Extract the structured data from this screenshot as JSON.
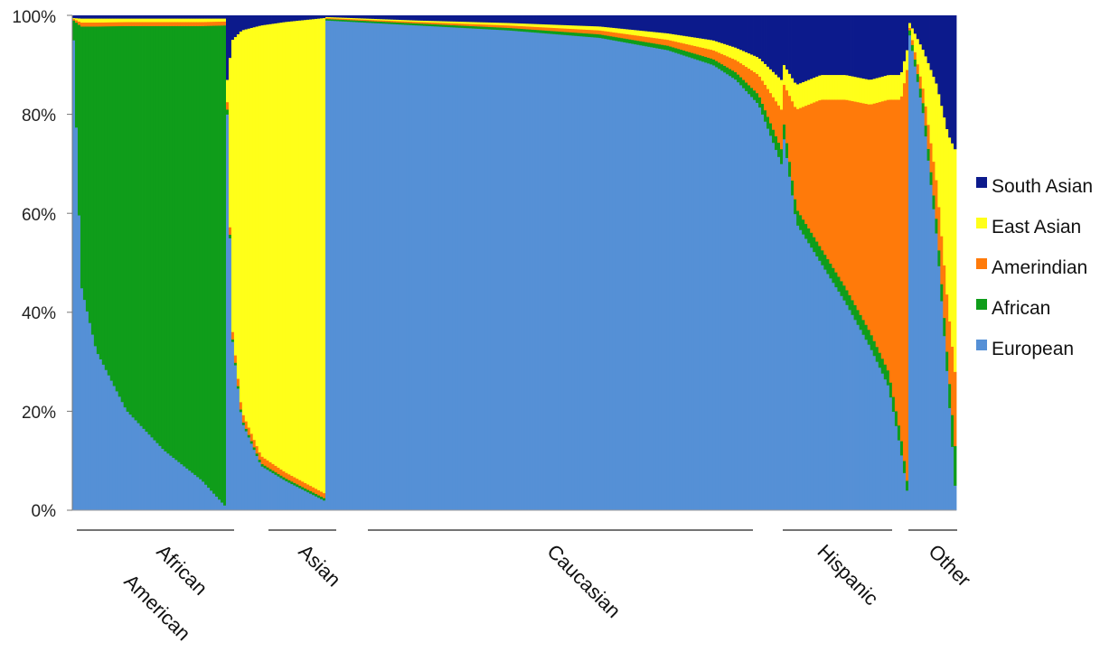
{
  "chart_data": {
    "type": "area",
    "kind": "stacked-100-percent-admixture",
    "yticks": [
      "0%",
      "20%",
      "40%",
      "60%",
      "80%",
      "100%"
    ],
    "ylim": [
      0,
      100
    ],
    "grid": false,
    "legend_position": "right",
    "stack_order": [
      "European",
      "African",
      "Amerindian",
      "East Asian",
      "South Asian"
    ],
    "colors": {
      "European": "#5590d6",
      "African": "#0f9d1a",
      "Amerindian": "#ff7a0a",
      "East Asian": "#ffff19",
      "South Asian": "#0c1a8c"
    },
    "legend": [
      {
        "name": "South Asian",
        "color": "#0c1a8c"
      },
      {
        "name": "East Asian",
        "color": "#ffff19"
      },
      {
        "name": "Amerindian",
        "color": "#ff7a0a"
      },
      {
        "name": "African",
        "color": "#0f9d1a"
      },
      {
        "name": "European",
        "color": "#5590d6"
      }
    ],
    "groups": [
      {
        "label": "African American",
        "label_lines": [
          "African",
          "American"
        ],
        "profile": {
          "t": [
            0,
            0.05,
            0.15,
            0.35,
            0.6,
            0.85,
            1
          ],
          "European": [
            95,
            45,
            32,
            20,
            12,
            6,
            1
          ],
          "African": [
            4,
            52,
            65,
            77,
            85,
            91,
            97
          ],
          "Amerindian": [
            0.3,
            0.8,
            0.8,
            0.8,
            0.8,
            0.8,
            0.8
          ],
          "East Asian": [
            0.2,
            0.8,
            0.8,
            0.7,
            0.7,
            0.7,
            0.6
          ],
          "South Asian": [
            0.5,
            0.6,
            0.6,
            0.6,
            0.6,
            0.6,
            0.6
          ]
        }
      },
      {
        "label": "Asian",
        "label_lines": [
          "Asian"
        ],
        "profile": {
          "t": [
            0,
            0.05,
            0.15,
            0.35,
            0.6,
            1
          ],
          "European": [
            80,
            35,
            18,
            9,
            6,
            2
          ],
          "African": [
            1,
            0.5,
            0.5,
            0.5,
            0.5,
            0.5
          ],
          "Amerindian": [
            1.5,
            1.5,
            1.5,
            1.5,
            1.2,
            1
          ],
          "East Asian": [
            4.5,
            58,
            77,
            87,
            91,
            96
          ],
          "South Asian": [
            13,
            5,
            3,
            2,
            1.3,
            0.5
          ]
        }
      },
      {
        "label": "Caucasian",
        "label_lines": [
          "Caucasian"
        ],
        "profile": {
          "t": [
            0,
            0.2,
            0.4,
            0.6,
            0.75,
            0.85,
            0.9,
            0.95,
            1
          ],
          "European": [
            99,
            98,
            97,
            95.5,
            93,
            90,
            87,
            82,
            70
          ],
          "African": [
            0.3,
            0.4,
            0.5,
            0.7,
            0.9,
            1.2,
            1.5,
            2,
            3
          ],
          "Amerindian": [
            0.2,
            0.3,
            0.5,
            0.8,
            1.2,
            1.8,
            2.5,
            4,
            8
          ],
          "East Asian": [
            0.2,
            0.3,
            0.5,
            0.8,
            1.3,
            2,
            2.5,
            3.5,
            6
          ],
          "South Asian": [
            0.3,
            1,
            1.5,
            2.2,
            3.6,
            5,
            6.5,
            8.5,
            13
          ]
        }
      },
      {
        "label": "Hispanic",
        "label_lines": [
          "Hispanic"
        ],
        "profile": {
          "t": [
            0,
            0.1,
            0.3,
            0.5,
            0.7,
            0.85,
            0.95,
            1
          ],
          "European": [
            75,
            58,
            50,
            42,
            33,
            25,
            12,
            4
          ],
          "African": [
            3,
            3,
            3,
            3,
            3,
            3,
            3,
            2
          ],
          "Amerindian": [
            8,
            20,
            30,
            38,
            46,
            55,
            68,
            83
          ],
          "East Asian": [
            4,
            5,
            5,
            5,
            5,
            5,
            5,
            4
          ],
          "South Asian": [
            10,
            14,
            12,
            12,
            13,
            12,
            12,
            7
          ]
        }
      },
      {
        "label": "Other",
        "label_lines": [
          "Other"
        ],
        "profile": {
          "t": [
            0,
            0.3,
            0.6,
            0.85,
            1
          ],
          "European": [
            96,
            80,
            55,
            25,
            5
          ],
          "African": [
            1,
            2,
            3,
            4,
            8
          ],
          "Amerindian": [
            0.5,
            3,
            8,
            12,
            15
          ],
          "East Asian": [
            1,
            8,
            20,
            35,
            45
          ],
          "South Asian": [
            1.5,
            7,
            14,
            24,
            27
          ]
        }
      }
    ]
  }
}
